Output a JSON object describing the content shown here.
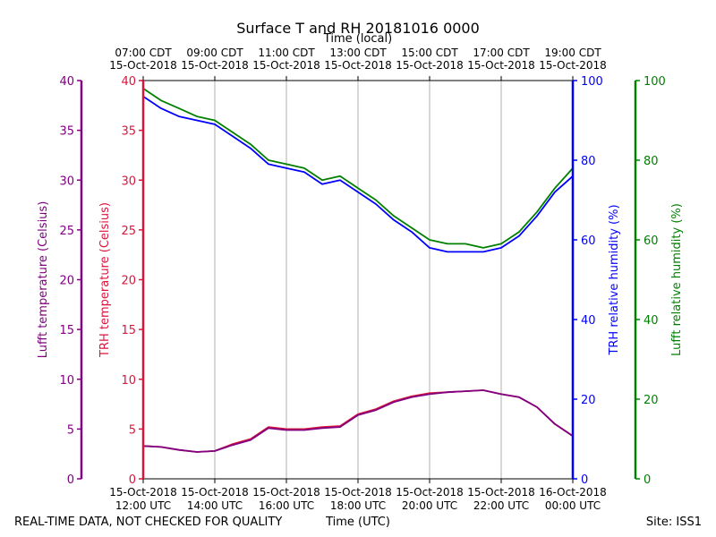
{
  "chart_data": {
    "type": "line",
    "title": "Surface T and RH 20181016 0000",
    "xlabel": "Time (UTC)",
    "x2label": "Time (local)",
    "footer_left": "REAL-TIME DATA, NOT CHECKED FOR QUALITY",
    "footer_right": "Site: ISS1",
    "x_range_hours_utc": [
      12,
      24
    ],
    "grid": true,
    "x_ticks_bottom": [
      {
        "hour": 12,
        "line1": "15-Oct-2018",
        "line2": "12:00 UTC"
      },
      {
        "hour": 14,
        "line1": "15-Oct-2018",
        "line2": "14:00 UTC"
      },
      {
        "hour": 16,
        "line1": "15-Oct-2018",
        "line2": "16:00 UTC"
      },
      {
        "hour": 18,
        "line1": "15-Oct-2018",
        "line2": "18:00 UTC"
      },
      {
        "hour": 20,
        "line1": "15-Oct-2018",
        "line2": "20:00 UTC"
      },
      {
        "hour": 22,
        "line1": "15-Oct-2018",
        "line2": "22:00 UTC"
      },
      {
        "hour": 24,
        "line1": "16-Oct-2018",
        "line2": "00:00 UTC"
      }
    ],
    "x_ticks_top": [
      {
        "hour": 12,
        "line1": "07:00 CDT",
        "line2": "15-Oct-2018"
      },
      {
        "hour": 14,
        "line1": "09:00 CDT",
        "line2": "15-Oct-2018"
      },
      {
        "hour": 16,
        "line1": "11:00 CDT",
        "line2": "15-Oct-2018"
      },
      {
        "hour": 18,
        "line1": "13:00 CDT",
        "line2": "15-Oct-2018"
      },
      {
        "hour": 20,
        "line1": "15:00 CDT",
        "line2": "15-Oct-2018"
      },
      {
        "hour": 22,
        "line1": "17:00 CDT",
        "line2": "15-Oct-2018"
      },
      {
        "hour": 24,
        "line1": "19:00 CDT",
        "line2": "15-Oct-2018"
      }
    ],
    "axes": [
      {
        "id": "lufft_t",
        "label": "Lufft temperature (Celsius)",
        "color": "#800080",
        "range": [
          0,
          40
        ],
        "ticks": [
          0,
          5,
          10,
          15,
          20,
          25,
          30,
          35,
          40
        ]
      },
      {
        "id": "trh_t",
        "label": "TRH temperature (Celsius)",
        "color": "#dc143c",
        "range": [
          0,
          40
        ],
        "ticks": [
          0,
          5,
          10,
          15,
          20,
          25,
          30,
          35,
          40
        ]
      },
      {
        "id": "trh_rh",
        "label": "TRH relative humidity (%)",
        "color": "#0000ff",
        "range": [
          0,
          100
        ],
        "ticks": [
          0,
          20,
          40,
          60,
          80,
          100
        ]
      },
      {
        "id": "lufft_rh",
        "label": "Lufft relative humidity (%)",
        "color": "#008000",
        "range": [
          0,
          100
        ],
        "ticks": [
          0,
          20,
          40,
          60,
          80,
          100
        ]
      }
    ],
    "series": [
      {
        "axis": "trh_t",
        "color": "#dc143c",
        "hours": [
          12,
          12.5,
          13,
          13.5,
          14,
          14.5,
          15,
          15.5,
          16,
          16.5,
          17,
          17.5,
          18,
          18.5,
          19,
          19.5,
          20,
          20.5,
          21,
          21.5,
          22,
          22.5,
          23,
          23.5,
          24
        ],
        "values": [
          3.3,
          3.2,
          2.9,
          2.7,
          2.8,
          3.5,
          4.0,
          5.2,
          5.0,
          5.0,
          5.2,
          5.3,
          6.5,
          7.0,
          7.8,
          8.3,
          8.6,
          8.7,
          8.8,
          8.9,
          8.5,
          8.2,
          7.2,
          5.5,
          4.3
        ]
      },
      {
        "axis": "lufft_t",
        "color": "#800080",
        "hours": [
          12,
          12.5,
          13,
          13.5,
          14,
          14.5,
          15,
          15.5,
          16,
          16.5,
          17,
          17.5,
          18,
          18.5,
          19,
          19.5,
          20,
          20.5,
          21,
          21.5,
          22,
          22.5,
          23,
          23.5,
          24
        ],
        "values": [
          3.3,
          3.2,
          2.9,
          2.7,
          2.8,
          3.4,
          3.9,
          5.1,
          4.9,
          4.9,
          5.1,
          5.2,
          6.4,
          6.9,
          7.7,
          8.2,
          8.5,
          8.7,
          8.8,
          8.9,
          8.5,
          8.2,
          7.2,
          5.5,
          4.3
        ]
      },
      {
        "axis": "trh_rh",
        "color": "#0000ff",
        "hours": [
          12,
          12.5,
          13,
          13.5,
          14,
          14.5,
          15,
          15.5,
          16,
          16.5,
          17,
          17.5,
          18,
          18.5,
          19,
          19.5,
          20,
          20.5,
          21,
          21.5,
          22,
          22.5,
          23,
          23.5,
          24
        ],
        "values": [
          96,
          93,
          91,
          90,
          89,
          86,
          83,
          79,
          78,
          77,
          74,
          75,
          72,
          69,
          65,
          62,
          58,
          57,
          57,
          57,
          58,
          61,
          66,
          72,
          76
        ]
      },
      {
        "axis": "lufft_rh",
        "color": "#008000",
        "hours": [
          12,
          12.5,
          13,
          13.5,
          14,
          14.5,
          15,
          15.5,
          16,
          16.5,
          17,
          17.5,
          18,
          18.5,
          19,
          19.5,
          20,
          20.5,
          21,
          21.5,
          22,
          22.5,
          23,
          23.5,
          24
        ],
        "values": [
          98,
          95,
          93,
          91,
          90,
          87,
          84,
          80,
          79,
          78,
          75,
          76,
          73,
          70,
          66,
          63,
          60,
          59,
          59,
          58,
          59,
          62,
          67,
          73,
          78
        ]
      }
    ]
  }
}
